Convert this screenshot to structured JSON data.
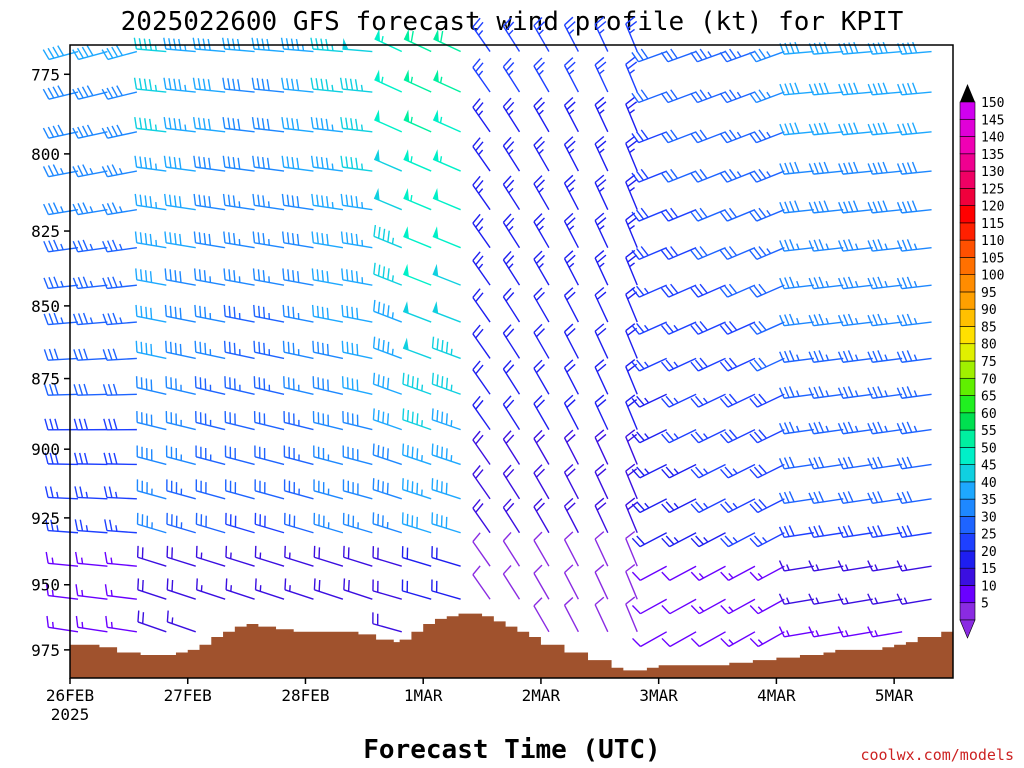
{
  "chart_data": {
    "type": "wind-profile",
    "title": "2025022600 GFS forecast wind profile (kt) for KPIT",
    "xlabel": "Forecast Time (UTC)",
    "credit": "coolwx.com/models",
    "x_ticks": [
      {
        "label": "26FEB",
        "sub": "2025",
        "day": 0
      },
      {
        "label": "27FEB",
        "sub": "",
        "day": 1
      },
      {
        "label": "28FEB",
        "sub": "",
        "day": 2
      },
      {
        "label": "1MAR",
        "sub": "",
        "day": 3
      },
      {
        "label": "2MAR",
        "sub": "",
        "day": 4
      },
      {
        "label": "3MAR",
        "sub": "",
        "day": 5
      },
      {
        "label": "4MAR",
        "sub": "",
        "day": 6
      },
      {
        "label": "5MAR",
        "sub": "",
        "day": 7
      }
    ],
    "xlim_days": [
      0,
      7.5
    ],
    "y_ticks": [
      775,
      800,
      825,
      850,
      875,
      900,
      925,
      950,
      975
    ],
    "ylim_hpa": [
      766,
      986
    ],
    "y_log_scale": true,
    "colorbar": {
      "levels": [
        5,
        10,
        15,
        20,
        25,
        30,
        35,
        40,
        45,
        50,
        55,
        60,
        65,
        70,
        75,
        80,
        85,
        90,
        95,
        100,
        105,
        110,
        115,
        120,
        125,
        130,
        135,
        140,
        145,
        150
      ],
      "labels": [
        "5",
        "10",
        "15",
        "20",
        "25",
        "30",
        "35",
        "40",
        "45",
        "50",
        "55",
        "60",
        "65",
        "70",
        "75",
        "80",
        "85",
        "90",
        "95",
        "100",
        "105",
        "110",
        "115",
        "120",
        "125",
        "130",
        "135",
        "140",
        "145",
        "150"
      ],
      "colors": [
        "#8a2be2",
        "#6a00ff",
        "#3b0fe0",
        "#1e1ef0",
        "#1e40ff",
        "#1e64ff",
        "#1e88ff",
        "#1ea8ff",
        "#10d0e0",
        "#00f0c8",
        "#00f0a0",
        "#00e050",
        "#20f020",
        "#60f000",
        "#a0f000",
        "#e0f000",
        "#ffe000",
        "#ffc000",
        "#ffa000",
        "#ff8c00",
        "#ff7000",
        "#ff5000",
        "#ff2000",
        "#ff0000",
        "#f0003c",
        "#f00064",
        "#f00090",
        "#f000b4",
        "#e000d8",
        "#d000f0"
      ]
    },
    "terrain_color": "#a0522d",
    "terrain": {
      "days": [
        0,
        0.12,
        0.25,
        0.4,
        0.6,
        0.75,
        0.9,
        1.0,
        1.1,
        1.2,
        1.3,
        1.4,
        1.5,
        1.6,
        1.75,
        1.9,
        2.1,
        2.3,
        2.45,
        2.6,
        2.75,
        2.8,
        2.9,
        3.0,
        3.1,
        3.2,
        3.3,
        3.4,
        3.5,
        3.6,
        3.7,
        3.8,
        3.9,
        4.0,
        4.2,
        4.4,
        4.6,
        4.7,
        4.8,
        4.9,
        5.0,
        5.2,
        5.4,
        5.6,
        5.8,
        6.0,
        6.2,
        6.4,
        6.5,
        6.7,
        6.9,
        7.0,
        7.1,
        7.2,
        7.3,
        7.4,
        7.5
      ],
      "hpa": [
        973,
        973,
        974,
        976,
        977,
        977,
        976,
        975,
        973,
        970,
        968,
        966,
        965,
        966,
        967,
        968,
        968,
        968,
        969,
        971,
        972,
        971,
        968,
        965,
        963,
        962,
        961,
        961,
        962,
        964,
        966,
        968,
        970,
        973,
        976,
        979,
        982,
        983,
        983,
        982,
        981,
        981,
        981,
        980,
        979,
        978,
        977,
        976,
        975,
        975,
        974,
        973,
        972,
        970,
        970,
        968,
        968
      ]
    },
    "barb_spacing": {
      "time_step_hours": 6,
      "pressure_step_hpa": 12.5
    }
  }
}
